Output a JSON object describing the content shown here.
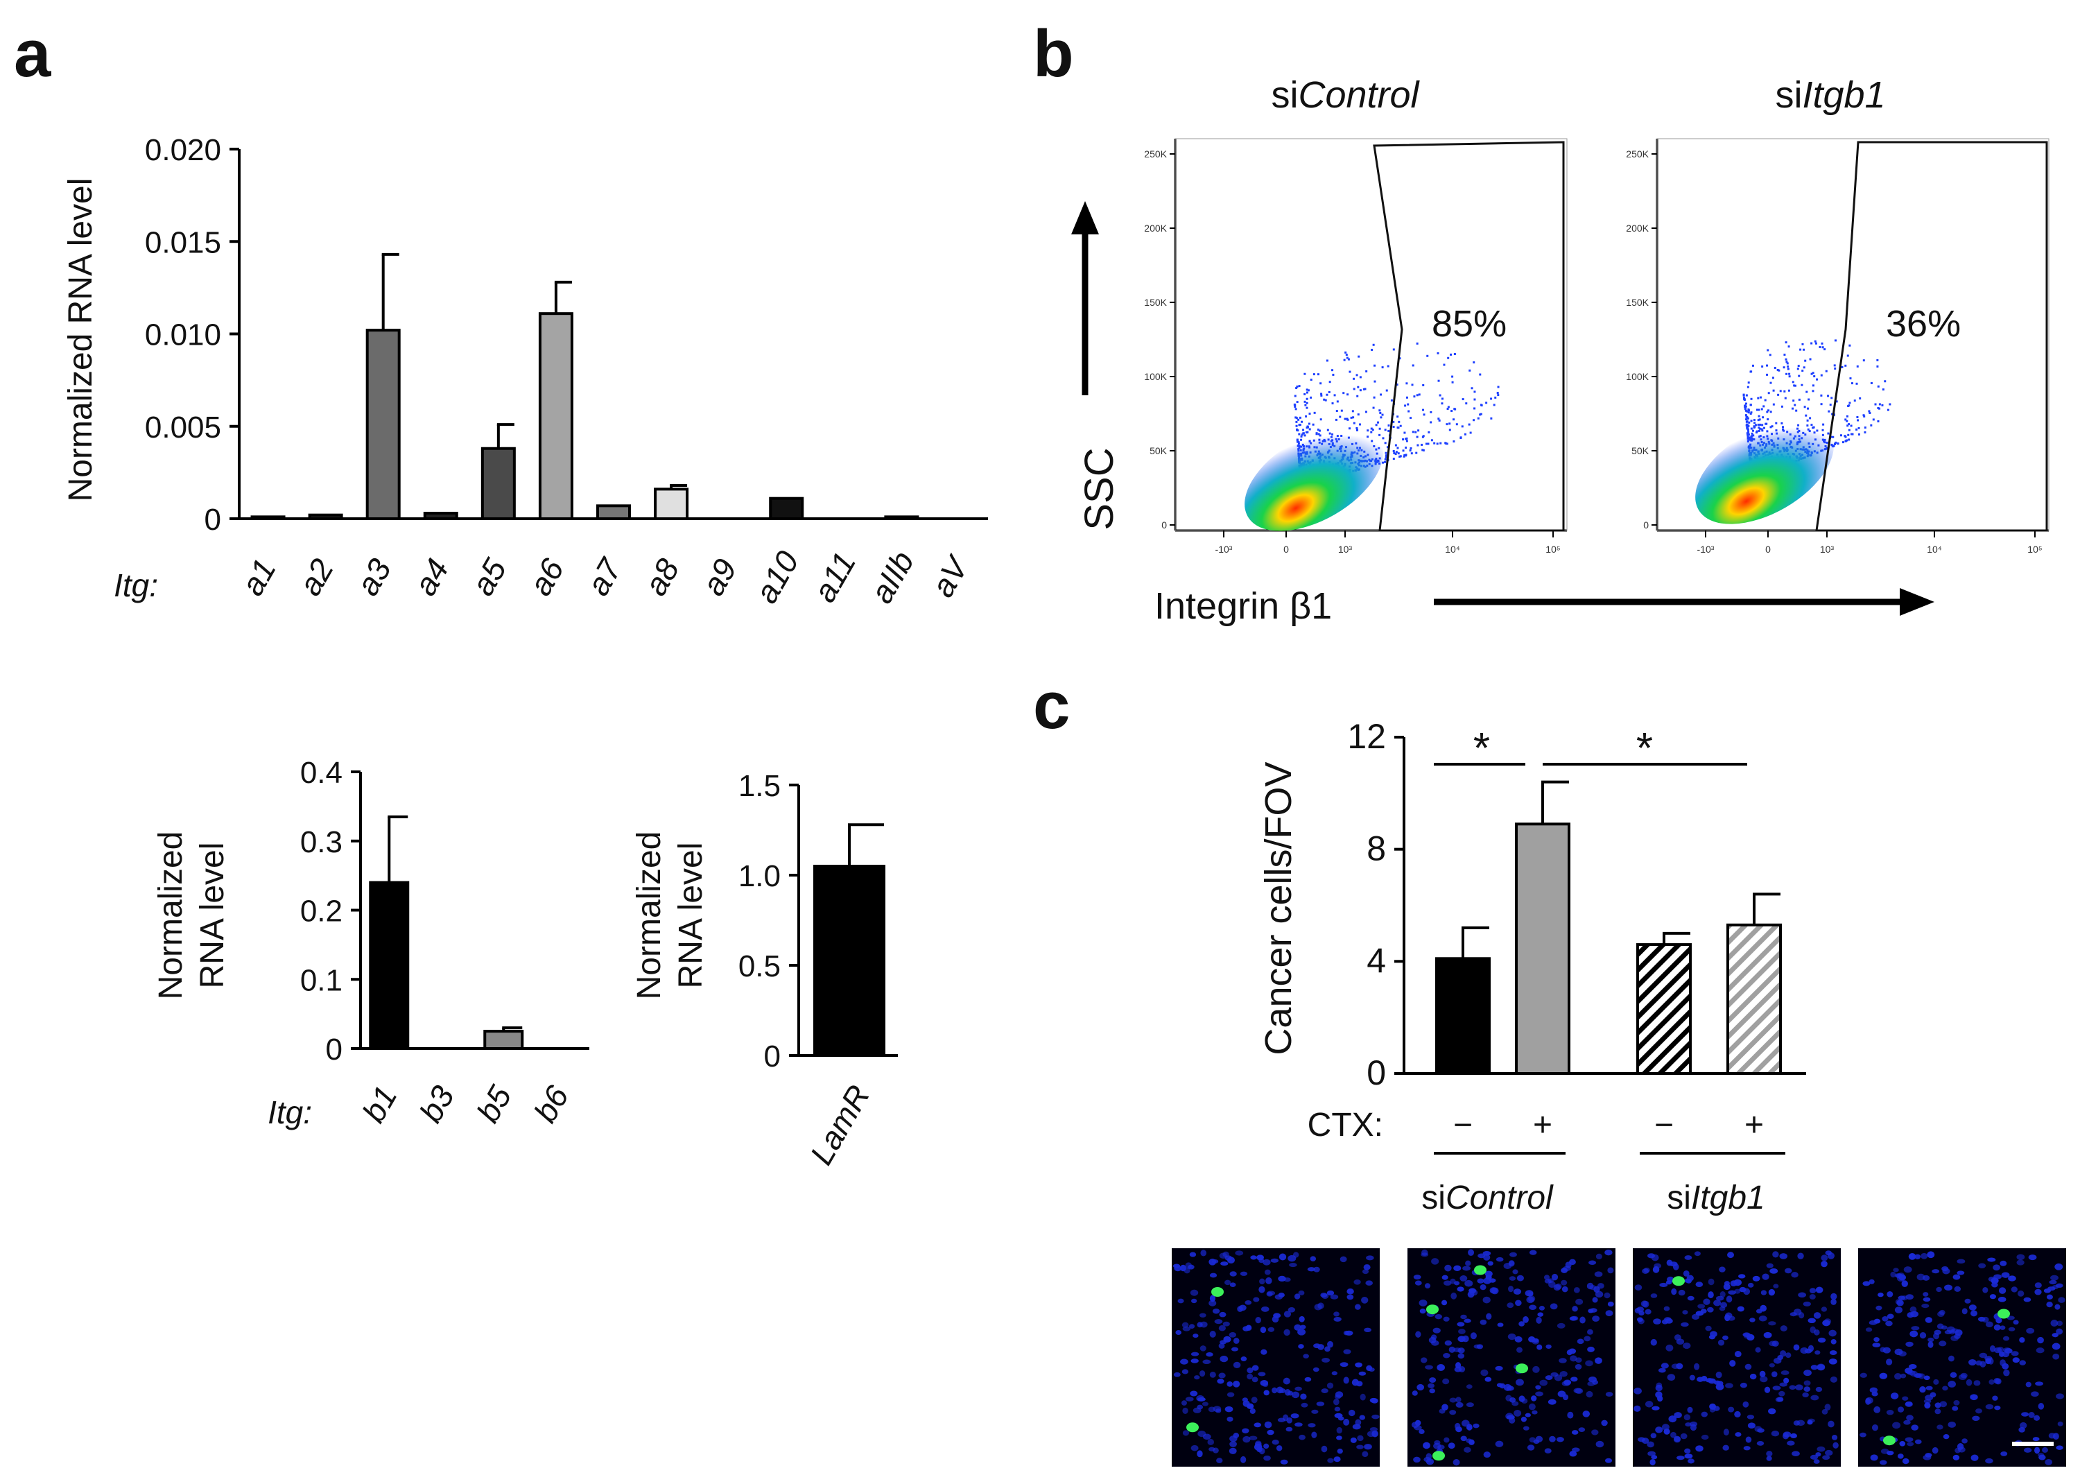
{
  "panels": {
    "a": "a",
    "b": "b",
    "c": "c"
  },
  "chart_data": [
    {
      "id": "a-alpha",
      "type": "bar",
      "title": "",
      "ylabel": "Normalized  RNA level",
      "xprefix": "Itg:",
      "ylim": [
        0,
        0.02
      ],
      "yticks": [
        0,
        0.005,
        0.01,
        0.015,
        0.02
      ],
      "ytick_labels": [
        "0",
        "0.005",
        "0.010",
        "0.015",
        "0.020"
      ],
      "categories": [
        "a1",
        "a2",
        "a3",
        "a4",
        "a5",
        "a6",
        "a7",
        "a8",
        "a9",
        "a10",
        "a11",
        "aIIb",
        "aV"
      ],
      "values": [
        0.0001,
        0.0002,
        0.0102,
        0.0003,
        0.0038,
        0.0111,
        0.0007,
        0.0016,
        0.0,
        0.0011,
        0.0,
        0.0001,
        0.0
      ],
      "errors": [
        0,
        0,
        0.0041,
        0,
        0.0013,
        0.0017,
        0,
        0.0002,
        0,
        0,
        0,
        0,
        0
      ],
      "colors": [
        "#222222",
        "#222222",
        "#6b6b6b",
        "#222222",
        "#4a4a4a",
        "#a4a4a4",
        "#777777",
        "#e0e0e0",
        "#222222",
        "#111111",
        "#222222",
        "#222222",
        "#222222"
      ]
    },
    {
      "id": "a-beta",
      "type": "bar",
      "ylabel_lines": [
        "Normalized",
        "RNA level"
      ],
      "xprefix": "Itg:",
      "ylim": [
        0,
        0.4
      ],
      "yticks": [
        0,
        0.1,
        0.2,
        0.3,
        0.4
      ],
      "ytick_labels": [
        "0",
        "0.1",
        "0.2",
        "0.3",
        "0.4"
      ],
      "categories": [
        "b1",
        "b3",
        "b5",
        "b6"
      ],
      "values": [
        0.24,
        0.0,
        0.025,
        0.0
      ],
      "errors": [
        0.095,
        0,
        0.005,
        0
      ],
      "colors": [
        "#000000",
        "#000000",
        "#888888",
        "#000000"
      ]
    },
    {
      "id": "a-lamr",
      "type": "bar",
      "ylabel_lines": [
        "Normalized",
        "RNA level"
      ],
      "ylim": [
        0,
        1.5
      ],
      "yticks": [
        0,
        0.5,
        1.0,
        1.5
      ],
      "ytick_labels": [
        "0",
        "0.5",
        "1.0",
        "1.5"
      ],
      "categories": [
        "LamR"
      ],
      "values": [
        1.05
      ],
      "errors": [
        0.23
      ],
      "colors": [
        "#000000"
      ]
    },
    {
      "id": "c-bar",
      "type": "bar",
      "ylabel": "Cancer cells/FOV",
      "ylim": [
        0,
        12
      ],
      "yticks": [
        0,
        4,
        8,
        12
      ],
      "ytick_labels": [
        "0",
        "4",
        "8",
        "12"
      ],
      "categories": [
        "siControl CTX −",
        "siControl CTX +",
        "siItgb1 CTX −",
        "siItgb1 CTX +"
      ],
      "values": [
        4.1,
        8.9,
        4.6,
        5.3
      ],
      "errors": [
        1.1,
        1.5,
        0.4,
        1.1
      ],
      "colors": [
        "#000000",
        "#a0a0a0",
        "hatch-black",
        "hatch-gray"
      ],
      "x_row_label": "CTX:",
      "signs": [
        "−",
        "+",
        "−",
        "+"
      ],
      "groups": [
        {
          "prefix": "si",
          "name": "Control"
        },
        {
          "prefix": "si",
          "name": "Itgb1"
        }
      ],
      "significance": [
        "*",
        "*"
      ]
    }
  ],
  "flow": {
    "plots": [
      {
        "title_prefix": "si",
        "title_name": "Control",
        "percent": "85%"
      },
      {
        "title_prefix": "si",
        "title_name": "Itgb1",
        "percent": "36%"
      }
    ],
    "ylabel": "SSC",
    "xlabel": "Integrin β1",
    "yticks": [
      "0",
      "50K",
      "100K",
      "150K",
      "200K",
      "250K"
    ],
    "xticks": [
      "-10³",
      "0",
      "10³",
      "10⁴",
      "10⁵"
    ]
  },
  "images": {
    "count": 4,
    "nuclei_color": "#1a2ad6",
    "cell_color": "#3cf05a"
  }
}
